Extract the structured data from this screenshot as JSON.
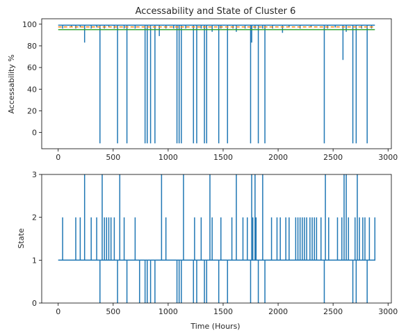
{
  "chart_data": [
    {
      "type": "line",
      "title": "Accessability and State of Cluster 6",
      "xlabel": "",
      "ylabel": "Accessability %",
      "xlim": [
        -150,
        3030
      ],
      "ylim": [
        -15,
        105
      ],
      "xticks": [
        0,
        500,
        1000,
        1500,
        2000,
        2500,
        3000
      ],
      "yticks": [
        0,
        20,
        40,
        60,
        80,
        100
      ],
      "colors": {
        "accessability": "#1f77b4",
        "mean": "#ff7f0e",
        "threshold": "#2ca02c"
      },
      "series": [
        {
          "baseline": 99,
          "x_end": 2880,
          "drops": [
            [
              40,
              96
            ],
            [
              120,
              97
            ],
            [
              160,
              96
            ],
            [
              200,
              97
            ],
            [
              240,
              83
            ],
            [
              300,
              96
            ],
            [
              350,
              97
            ],
            [
              380,
              -10
            ],
            [
              420,
              96
            ],
            [
              460,
              97
            ],
            [
              510,
              96
            ],
            [
              540,
              -10
            ],
            [
              600,
              96
            ],
            [
              625,
              -10
            ],
            [
              700,
              96
            ],
            [
              790,
              -10
            ],
            [
              810,
              -10
            ],
            [
              840,
              -10
            ],
            [
              880,
              -10
            ],
            [
              920,
              89
            ],
            [
              980,
              96
            ],
            [
              1050,
              96
            ],
            [
              1080,
              -10
            ],
            [
              1100,
              -10
            ],
            [
              1120,
              -10
            ],
            [
              1160,
              96
            ],
            [
              1230,
              -10
            ],
            [
              1260,
              -10
            ],
            [
              1300,
              96
            ],
            [
              1330,
              -10
            ],
            [
              1350,
              -10
            ],
            [
              1400,
              93
            ],
            [
              1460,
              -10
            ],
            [
              1480,
              96
            ],
            [
              1540,
              -10
            ],
            [
              1590,
              96
            ],
            [
              1620,
              93
            ],
            [
              1700,
              96
            ],
            [
              1750,
              -10
            ],
            [
              1760,
              83
            ],
            [
              1790,
              96
            ],
            [
              1820,
              -10
            ],
            [
              1860,
              96
            ],
            [
              1880,
              -10
            ],
            [
              1950,
              96
            ],
            [
              2040,
              92
            ],
            [
              2100,
              97
            ],
            [
              2200,
              96
            ],
            [
              2300,
              97
            ],
            [
              2420,
              -10
            ],
            [
              2450,
              96
            ],
            [
              2520,
              97
            ],
            [
              2590,
              67
            ],
            [
              2620,
              93
            ],
            [
              2680,
              -10
            ],
            [
              2710,
              -10
            ],
            [
              2760,
              96
            ],
            [
              2810,
              -10
            ],
            [
              2850,
              96
            ]
          ]
        },
        {
          "values": [
            97.5
          ]
        },
        {
          "values": [
            95
          ]
        }
      ]
    },
    {
      "type": "line",
      "title": "",
      "xlabel": "Time (Hours)",
      "ylabel": "State",
      "xlim": [
        -150,
        3030
      ],
      "ylim": [
        0,
        3
      ],
      "xticks": [
        0,
        500,
        1000,
        1500,
        2000,
        2500,
        3000
      ],
      "yticks": [
        0,
        1,
        2,
        3
      ],
      "colors": {
        "state": "#1f77b4"
      },
      "series": [
        {
          "baseline": 1,
          "x_end": 2880,
          "spikes": [
            [
              40,
              2
            ],
            [
              160,
              2
            ],
            [
              200,
              2
            ],
            [
              240,
              3
            ],
            [
              300,
              2
            ],
            [
              350,
              2
            ],
            [
              380,
              0
            ],
            [
              400,
              3
            ],
            [
              420,
              2
            ],
            [
              440,
              2
            ],
            [
              460,
              2
            ],
            [
              480,
              2
            ],
            [
              510,
              2
            ],
            [
              540,
              0
            ],
            [
              560,
              3
            ],
            [
              600,
              2
            ],
            [
              625,
              0
            ],
            [
              700,
              2
            ],
            [
              740,
              0
            ],
            [
              790,
              0
            ],
            [
              810,
              0
            ],
            [
              840,
              0
            ],
            [
              880,
              0
            ],
            [
              940,
              3
            ],
            [
              980,
              2
            ],
            [
              1080,
              0
            ],
            [
              1100,
              0
            ],
            [
              1120,
              0
            ],
            [
              1140,
              3
            ],
            [
              1230,
              0
            ],
            [
              1240,
              2
            ],
            [
              1260,
              0
            ],
            [
              1300,
              2
            ],
            [
              1330,
              0
            ],
            [
              1350,
              0
            ],
            [
              1380,
              3
            ],
            [
              1400,
              2
            ],
            [
              1460,
              0
            ],
            [
              1480,
              2
            ],
            [
              1540,
              0
            ],
            [
              1580,
              2
            ],
            [
              1620,
              3
            ],
            [
              1680,
              2
            ],
            [
              1720,
              2
            ],
            [
              1750,
              0
            ],
            [
              1760,
              3
            ],
            [
              1770,
              2
            ],
            [
              1790,
              3
            ],
            [
              1800,
              2
            ],
            [
              1820,
              0
            ],
            [
              1860,
              3
            ],
            [
              1880,
              0
            ],
            [
              1940,
              2
            ],
            [
              1990,
              2
            ],
            [
              2020,
              2
            ],
            [
              2070,
              2
            ],
            [
              2100,
              2
            ],
            [
              2160,
              2
            ],
            [
              2180,
              2
            ],
            [
              2200,
              2
            ],
            [
              2220,
              2
            ],
            [
              2240,
              2
            ],
            [
              2260,
              2
            ],
            [
              2290,
              2
            ],
            [
              2310,
              2
            ],
            [
              2330,
              2
            ],
            [
              2350,
              2
            ],
            [
              2390,
              2
            ],
            [
              2420,
              0
            ],
            [
              2430,
              3
            ],
            [
              2460,
              2
            ],
            [
              2540,
              2
            ],
            [
              2580,
              2
            ],
            [
              2600,
              3
            ],
            [
              2620,
              3
            ],
            [
              2640,
              2
            ],
            [
              2680,
              0
            ],
            [
              2700,
              2
            ],
            [
              2710,
              0
            ],
            [
              2720,
              3
            ],
            [
              2740,
              2
            ],
            [
              2770,
              2
            ],
            [
              2790,
              2
            ],
            [
              2810,
              0
            ],
            [
              2830,
              2
            ],
            [
              2880,
              2
            ]
          ]
        }
      ]
    }
  ]
}
